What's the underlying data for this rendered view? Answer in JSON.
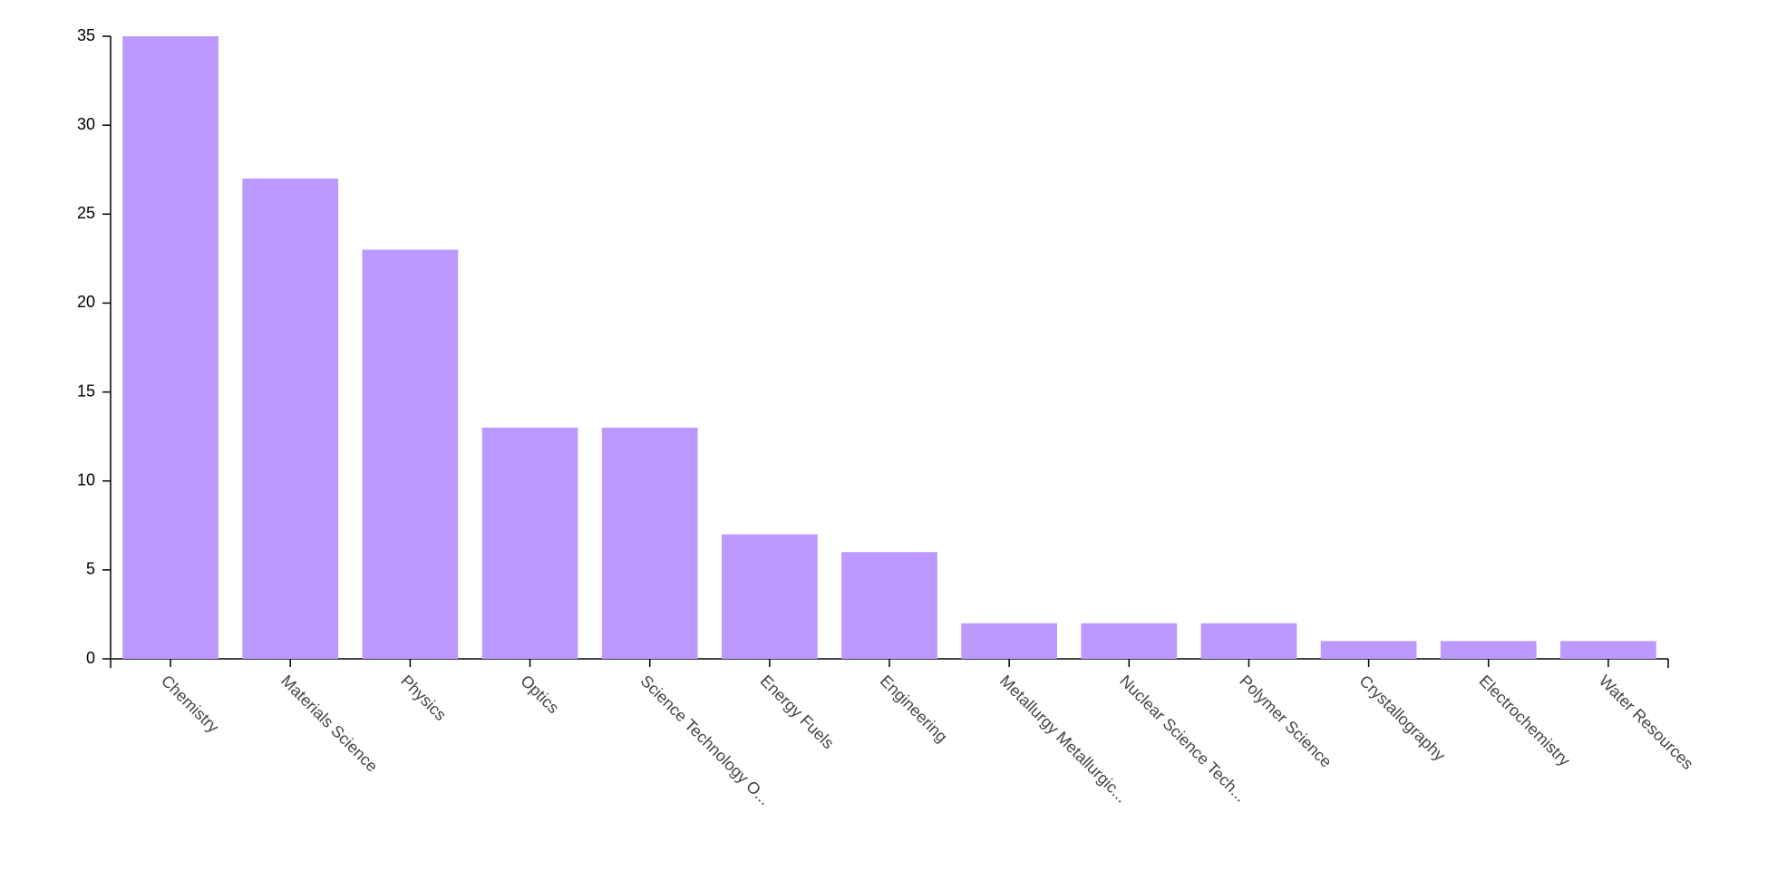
{
  "chart_data": {
    "type": "bar",
    "categories": [
      "Chemistry",
      "Materials Science",
      "Physics",
      "Optics",
      "Science Technology O...",
      "Energy Fuels",
      "Engineering",
      "Metallurgy Metallurgic...",
      "Nuclear Science Tech...",
      "Polymer Science",
      "Crystallography",
      "Electrochemistry",
      "Water Resources"
    ],
    "values": [
      35,
      27,
      23,
      13,
      13,
      7,
      6,
      2,
      2,
      2,
      1,
      1,
      1
    ],
    "color": "#bb99ff",
    "ylim": [
      0,
      35
    ],
    "yticks": [
      0,
      5,
      10,
      15,
      20,
      25,
      30,
      35
    ],
    "grid": false
  }
}
